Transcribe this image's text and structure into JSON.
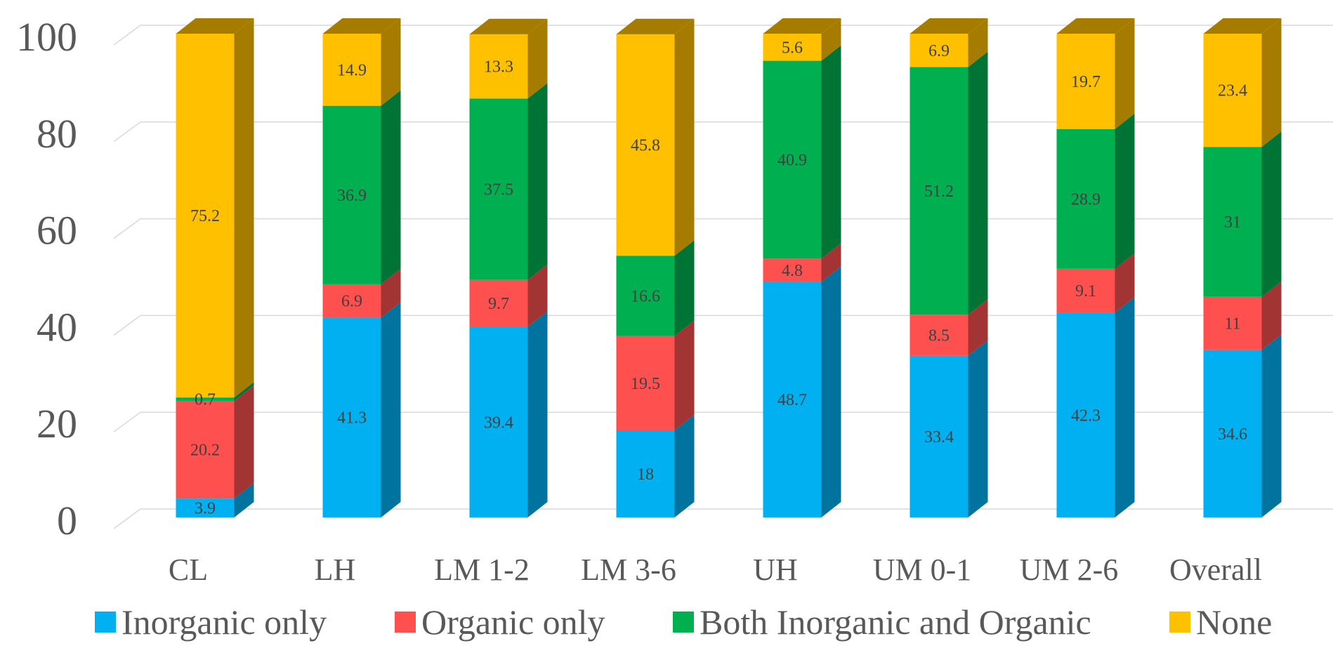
{
  "chart_data": {
    "type": "bar",
    "stacked": true,
    "style": "3d-stacked-column",
    "categories": [
      "CL",
      "LH",
      "LM 1-2",
      "LM 3-6",
      "UH",
      "UM 0-1",
      "UM 2-6",
      "Overall"
    ],
    "series": [
      {
        "name": "Inorganic only",
        "color": "#00B0F0",
        "side_color": "#00739E",
        "values": [
          3.9,
          41.3,
          39.4,
          18,
          48.7,
          33.4,
          42.3,
          34.6
        ]
      },
      {
        "name": "Organic only",
        "color": "#FF5050",
        "side_color": "#A33434",
        "values": [
          20.2,
          6.9,
          9.7,
          19.5,
          4.8,
          8.5,
          9.1,
          11
        ]
      },
      {
        "name": "Both Inorganic and Organic",
        "color": "#00B050",
        "side_color": "#007434",
        "values": [
          0.7,
          36.9,
          37.5,
          16.6,
          40.9,
          51.2,
          28.9,
          31
        ]
      },
      {
        "name": "None",
        "color": "#FFC000",
        "side_color": "#A67C00",
        "values": [
          75.2,
          14.9,
          13.3,
          45.8,
          5.6,
          6.9,
          19.7,
          23.4
        ]
      }
    ],
    "data_labels": [
      [
        "3.9",
        "41.3",
        "39.4",
        "18",
        "48.7",
        "33.4",
        "42.3",
        "34.6"
      ],
      [
        "20.2",
        "6.9",
        "9.7",
        "19.5",
        "4.8",
        "8.5",
        "9.1",
        "11"
      ],
      [
        "0.7",
        "36.9",
        "37.5",
        "16.6",
        "40.9",
        "51.2",
        "28.9",
        "31"
      ],
      [
        "75.2",
        "14.9",
        "13.3",
        "45.8",
        "5.6",
        "6.9",
        "19.7",
        "23.4"
      ]
    ],
    "y_ticks": [
      "0",
      "20",
      "40",
      "60",
      "80",
      "100"
    ],
    "ylim": [
      0,
      100
    ],
    "grid": true,
    "legend_position": "bottom",
    "title": "",
    "xlabel": "",
    "ylabel": ""
  }
}
